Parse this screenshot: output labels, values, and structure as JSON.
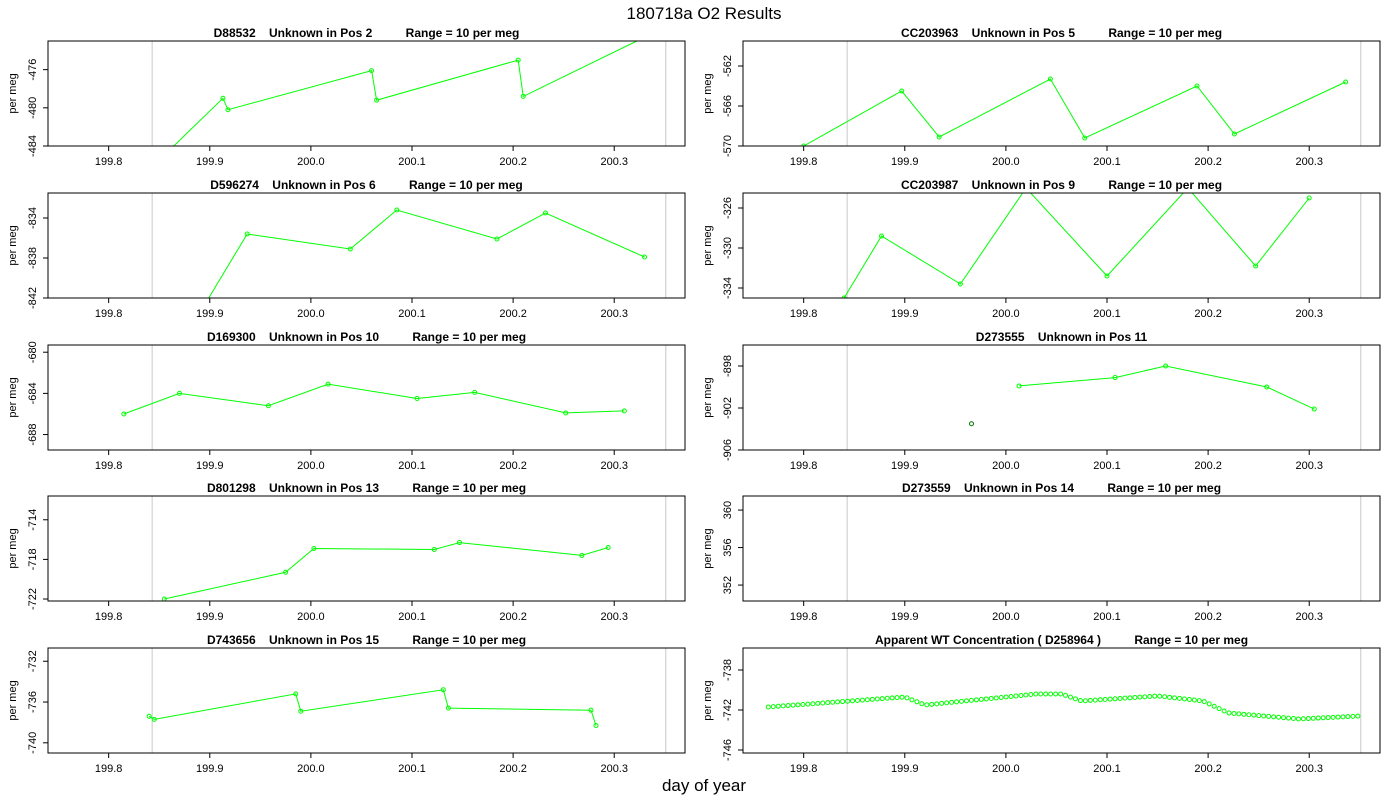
{
  "page": {
    "title": "180718a  O2 Results",
    "xlabel": "day of year"
  },
  "chart_data": [
    {
      "type": "line",
      "title": "D88532    Unknown in Pos 2          Range = 10 per meg",
      "ylabel": "per meg",
      "xlim": [
        199.74,
        200.37
      ],
      "ylim": [
        -484,
        -473
      ],
      "xticks": [
        "199.8",
        "199.9",
        "200.0",
        "200.1",
        "200.2",
        "200.3"
      ],
      "xtick_values": [
        199.8,
        199.9,
        200.0,
        200.1,
        200.2,
        200.3
      ],
      "yticks": [
        "-484",
        "-480",
        "-476"
      ],
      "ytick_values": [
        -484,
        -480,
        -476
      ],
      "vlines": [
        199.843,
        200.351
      ],
      "series": [
        {
          "x": [
            199.84,
            199.913,
            199.918,
            200.06,
            200.065,
            200.205,
            200.21,
            200.33
          ],
          "y": [
            -486.5,
            -479.0,
            -480.2,
            -476.1,
            -479.2,
            -475.0,
            -478.8,
            -472.6
          ],
          "color": "#00ff00",
          "kind": "line"
        }
      ]
    },
    {
      "type": "line",
      "title": "CC203963    Unknown in Pos 5          Range = 10 per meg",
      "ylabel": "per meg",
      "xlim": [
        199.74,
        200.37
      ],
      "ylim": [
        -570,
        -559.5
      ],
      "xticks": [
        "199.8",
        "199.9",
        "200.0",
        "200.1",
        "200.2",
        "200.3"
      ],
      "xtick_values": [
        199.8,
        199.9,
        200.0,
        200.1,
        200.2,
        200.3
      ],
      "yticks": [
        "-570",
        "-566",
        "-562"
      ],
      "ytick_values": [
        -570,
        -566,
        -562
      ],
      "vlines": [
        199.843,
        200.351
      ],
      "series": [
        {
          "x": [
            199.8,
            199.897,
            199.934,
            200.044,
            200.078,
            200.189,
            200.226,
            200.336
          ],
          "y": [
            -570.0,
            -564.5,
            -569.1,
            -563.3,
            -569.2,
            -564.0,
            -568.8,
            -563.6
          ],
          "color": "#00ff00",
          "kind": "line"
        }
      ]
    },
    {
      "type": "line",
      "title": "D596274    Unknown in Pos 6          Range = 10 per meg",
      "ylabel": "per meg",
      "xlim": [
        199.74,
        200.37
      ],
      "ylim": [
        -842,
        -831.5
      ],
      "xticks": [
        "199.8",
        "199.9",
        "200.0",
        "200.1",
        "200.2",
        "200.3"
      ],
      "xtick_values": [
        199.8,
        199.9,
        200.0,
        200.1,
        200.2,
        200.3
      ],
      "yticks": [
        "-842",
        "-838",
        "-834"
      ],
      "ytick_values": [
        -842,
        -838,
        -834
      ],
      "vlines": [
        199.843,
        200.351
      ],
      "series": [
        {
          "x": [
            199.89,
            199.937,
            200.039,
            200.085,
            200.184,
            200.232,
            200.33
          ],
          "y": [
            -843.5,
            -835.6,
            -837.1,
            -833.2,
            -836.1,
            -833.5,
            -837.9
          ],
          "color": "#00ff00",
          "kind": "line"
        }
      ]
    },
    {
      "type": "line",
      "title": "CC203987    Unknown in Pos 9          Range = 10 per meg",
      "ylabel": "per meg",
      "xlim": [
        199.74,
        200.37
      ],
      "ylim": [
        -335,
        -324.5
      ],
      "xticks": [
        "199.8",
        "199.9",
        "200.0",
        "200.1",
        "200.2",
        "200.3"
      ],
      "xtick_values": [
        199.8,
        199.9,
        200.0,
        200.1,
        200.2,
        200.3
      ],
      "yticks": [
        "-334",
        "-330",
        "-326"
      ],
      "ytick_values": [
        -334,
        -330,
        -326
      ],
      "vlines": [
        199.843,
        200.351
      ],
      "series": [
        {
          "x": [
            199.84,
            199.877,
            199.955,
            200.02,
            200.1,
            200.18,
            200.247,
            200.3
          ],
          "y": [
            -335.0,
            -328.8,
            -333.6,
            -324.0,
            -332.8,
            -324.0,
            -331.8,
            -325.0
          ],
          "color": "#00ff00",
          "kind": "line"
        }
      ]
    },
    {
      "type": "line",
      "title": "D169300    Unknown in Pos 10          Range = 10 per meg",
      "ylabel": "per meg",
      "xlim": [
        199.74,
        200.37
      ],
      "ylim": [
        -689.5,
        -679.3
      ],
      "xticks": [
        "199.8",
        "199.9",
        "200.0",
        "200.1",
        "200.2",
        "200.3"
      ],
      "xtick_values": [
        199.8,
        199.9,
        200.0,
        200.1,
        200.2,
        200.3
      ],
      "yticks": [
        "-688",
        "-684",
        "-680"
      ],
      "ytick_values": [
        -688,
        -684,
        -680
      ],
      "vlines": [
        199.843,
        200.351
      ],
      "series": [
        {
          "x": [
            199.815,
            199.87,
            199.958,
            200.017,
            200.105,
            200.162,
            200.252,
            200.31
          ],
          "y": [
            -686.0,
            -684.0,
            -685.2,
            -683.1,
            -684.5,
            -683.9,
            -685.9,
            -685.7
          ],
          "color": "#00ff00",
          "kind": "line"
        }
      ]
    },
    {
      "type": "line",
      "title": "D273555    Unknown in Pos 11",
      "ylabel": "per meg",
      "xlim": [
        199.74,
        200.37
      ],
      "ylim": [
        -906,
        -896
      ],
      "xticks": [
        "199.8",
        "199.9",
        "200.0",
        "200.1",
        "200.2",
        "200.3"
      ],
      "xtick_values": [
        199.8,
        199.9,
        200.0,
        200.1,
        200.2,
        200.3
      ],
      "yticks": [
        "-906",
        "-902",
        "-898"
      ],
      "ytick_values": [
        -906,
        -902,
        -898
      ],
      "vlines": [
        199.843,
        200.351
      ],
      "series": [
        {
          "x": [
            199.966
          ],
          "y": [
            -903.5
          ],
          "color": "#007700",
          "kind": "points"
        },
        {
          "x": [
            200.013,
            200.108,
            200.158,
            200.258,
            200.305
          ],
          "y": [
            -899.9,
            -899.1,
            -898.0,
            -900.0,
            -902.1
          ],
          "color": "#00ff00",
          "kind": "line"
        }
      ]
    },
    {
      "type": "line",
      "title": "D801298    Unknown in Pos 13          Range = 10 per meg",
      "ylabel": "per meg",
      "xlim": [
        199.74,
        200.37
      ],
      "ylim": [
        -722.2,
        -711.6
      ],
      "xticks": [
        "199.8",
        "199.9",
        "200.0",
        "200.1",
        "200.2",
        "200.3"
      ],
      "xtick_values": [
        199.8,
        199.9,
        200.0,
        200.1,
        200.2,
        200.3
      ],
      "yticks": [
        "-722",
        "-718",
        "-714"
      ],
      "ytick_values": [
        -722,
        -718,
        -714
      ],
      "vlines": [
        199.843,
        200.351
      ],
      "series": [
        {
          "x": [
            199.855,
            199.975,
            200.003,
            200.122,
            200.147,
            200.268,
            200.294
          ],
          "y": [
            -722.0,
            -719.3,
            -716.9,
            -717.0,
            -716.3,
            -717.6,
            -716.8
          ],
          "color": "#00ff00",
          "kind": "line"
        }
      ]
    },
    {
      "type": "line",
      "title": "D273559    Unknown in Pos 14          Range = 10 per meg",
      "ylabel": "per meg",
      "xlim": [
        199.74,
        200.37
      ],
      "ylim": [
        350.3,
        361.5
      ],
      "xticks": [
        "199.8",
        "199.9",
        "200.0",
        "200.1",
        "200.2",
        "200.3"
      ],
      "xtick_values": [
        199.8,
        199.9,
        200.0,
        200.1,
        200.2,
        200.3
      ],
      "yticks": [
        "352",
        "356",
        "360"
      ],
      "ytick_values": [
        352,
        356,
        360
      ],
      "vlines": [
        199.843,
        200.351
      ],
      "series": []
    },
    {
      "type": "line",
      "title": "D743656    Unknown in Pos 15          Range = 10 per meg",
      "ylabel": "per meg",
      "xlim": [
        199.74,
        200.37
      ],
      "ylim": [
        -741,
        -730.7
      ],
      "xticks": [
        "199.8",
        "199.9",
        "200.0",
        "200.1",
        "200.2",
        "200.3"
      ],
      "xtick_values": [
        199.8,
        199.9,
        200.0,
        200.1,
        200.2,
        200.3
      ],
      "yticks": [
        "-740",
        "-736",
        "-732"
      ],
      "ytick_values": [
        -740,
        -736,
        -732
      ],
      "vlines": [
        199.843,
        200.351
      ],
      "series": [
        {
          "x": [
            199.84,
            199.845,
            199.985,
            199.99,
            200.131,
            200.136,
            200.277,
            200.282
          ],
          "y": [
            -737.4,
            -737.7,
            -735.2,
            -736.9,
            -734.8,
            -736.6,
            -736.8,
            -738.3
          ],
          "color": "#00ff00",
          "kind": "line"
        }
      ]
    },
    {
      "type": "scatter",
      "title": "Apparent WT Concentration ( D258964 )          Range = 10 per meg",
      "ylabel": "per meg",
      "xlim": [
        199.74,
        200.37
      ],
      "ylim": [
        -746.3,
        -735.8
      ],
      "xticks": [
        "199.8",
        "199.9",
        "200.0",
        "200.1",
        "200.2",
        "200.3"
      ],
      "xtick_values": [
        199.8,
        199.9,
        200.0,
        200.1,
        200.2,
        200.3
      ],
      "yticks": [
        "-746",
        "-742",
        "-738"
      ],
      "ytick_values": [
        -746,
        -742,
        -738
      ],
      "vlines": [
        199.843,
        200.351
      ],
      "series": [
        {
          "x": [
            199.765,
            199.9,
            199.92,
            200.03,
            200.055,
            200.075,
            200.15,
            200.195,
            200.22,
            200.29,
            200.35
          ],
          "y": [
            -741.7,
            -740.7,
            -741.5,
            -740.4,
            -740.4,
            -741.1,
            -740.6,
            -741.1,
            -742.3,
            -742.9,
            -742.6
          ],
          "color": "#00ff00",
          "kind": "points",
          "sampled_every": 0.0049
        }
      ]
    }
  ]
}
